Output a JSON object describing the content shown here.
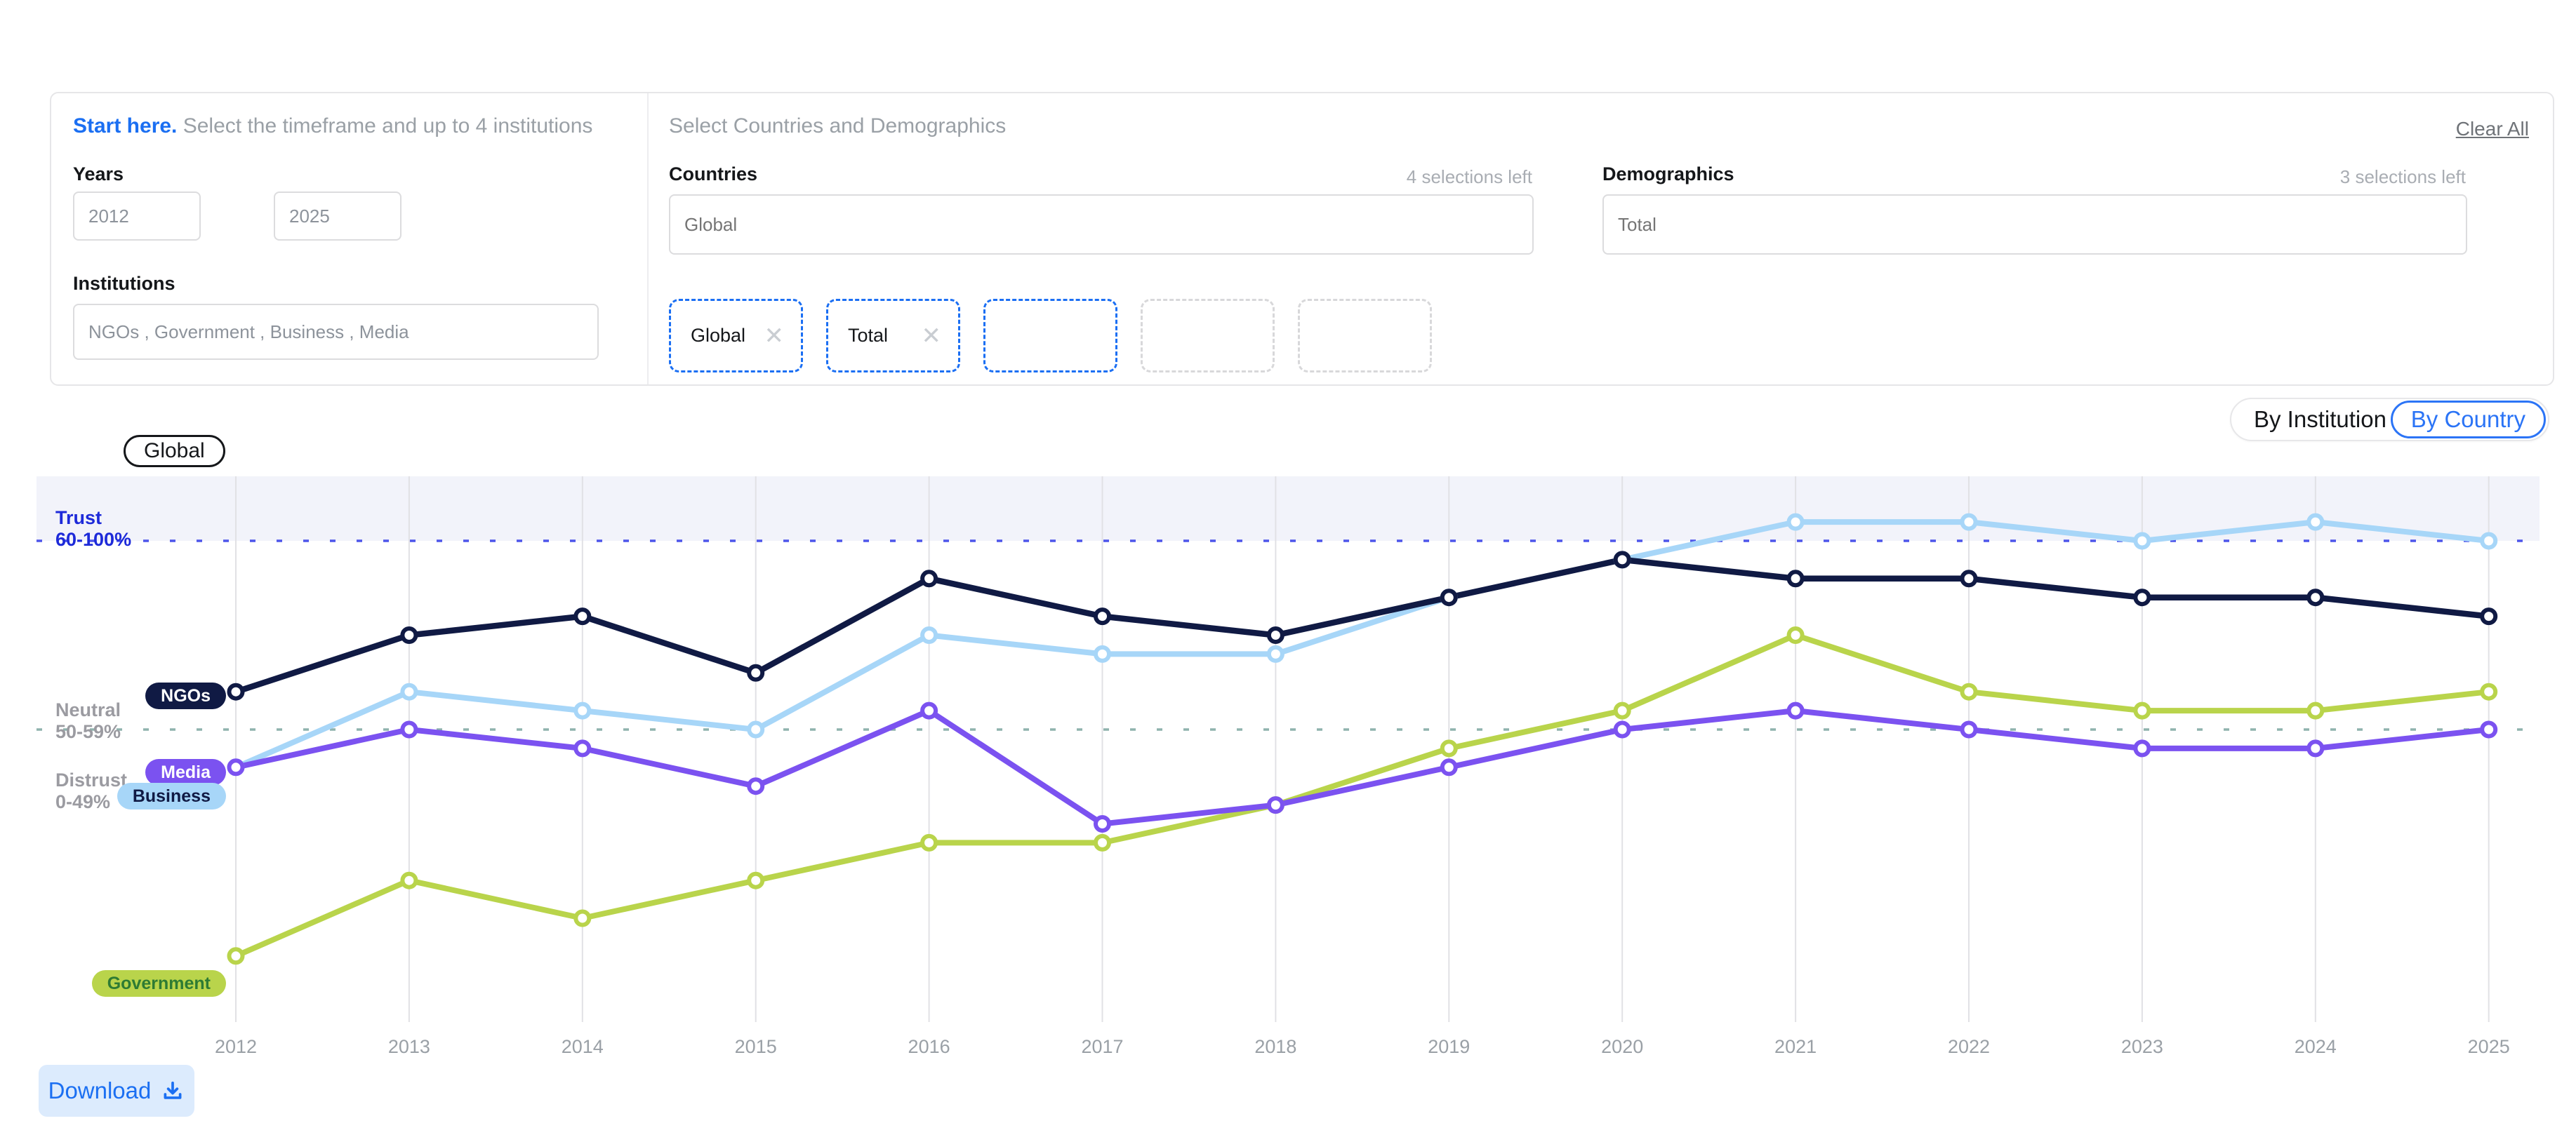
{
  "panel": {
    "start_here": "Start here.",
    "start_here_sub": "Select the timeframe and up to 4 institutions",
    "years_label": "Years",
    "year_from": "2012",
    "year_to": "2025",
    "institutions_label": "Institutions",
    "institutions_value": "NGOs , Government , Business , Media",
    "select_header": "Select Countries and Demographics",
    "countries_label": "Countries",
    "countries_selections_left": "4 selections left",
    "countries_placeholder": "Global",
    "demographics_label": "Demographics",
    "demographics_selections_left": "3 selections left",
    "demographics_placeholder": "Total",
    "clear_all": "Clear All",
    "close_icon": "✕",
    "chips": [
      {
        "label": "Global",
        "removable": true,
        "variant": "active"
      },
      {
        "label": "Total",
        "removable": true,
        "variant": "active"
      },
      {
        "label": "",
        "removable": false,
        "variant": "active-empty"
      },
      {
        "label": "",
        "removable": false,
        "variant": "empty"
      },
      {
        "label": "",
        "removable": false,
        "variant": "empty"
      }
    ]
  },
  "toolbar": {
    "by_institution": "By Institution",
    "by_country": "By Country",
    "selected": "By Country"
  },
  "chart": {
    "region_label": "Global",
    "download_label": "Download"
  },
  "colors": {
    "accent_blue": "#1b6ff2",
    "trust_band_bg": "#f2f3fa",
    "gridline": "#e1e1e5",
    "axis_text": "#9aa0a6"
  },
  "chart_data": {
    "type": "line",
    "title": "",
    "xlabel": "",
    "ylabel": "",
    "x": [
      2012,
      2013,
      2014,
      2015,
      2016,
      2017,
      2018,
      2019,
      2020,
      2021,
      2022,
      2023,
      2024,
      2025
    ],
    "ylim": [
      33,
      66
    ],
    "grid": "vertical-per-year",
    "legend_position": "inline-pills-left",
    "bands": [
      {
        "label": "Trust",
        "range": "60-100%",
        "line_value": 60,
        "label_color": "#1d2ad9",
        "line_color": "#4d55ea"
      },
      {
        "label": "Neutral",
        "range": "50-59%",
        "line_value": 50,
        "label_color": "#9b9ba1",
        "line_color": "#8fb3ad"
      },
      {
        "label": "Distrust",
        "range": "0-49%",
        "label_color": "#9b9ba1"
      }
    ],
    "series": [
      {
        "name": "Government",
        "color": "#b9d44b",
        "label_text_color": "#2e7b33",
        "values": [
          38,
          42,
          40,
          42,
          44,
          44,
          46,
          49,
          51,
          55,
          52,
          51,
          51,
          52
        ]
      },
      {
        "name": "Business",
        "color": "#a7d6f8",
        "label_text_color": "#101a44",
        "values": [
          48,
          52,
          51,
          50,
          55,
          54,
          54,
          57,
          59,
          61,
          61,
          60,
          61,
          60
        ]
      },
      {
        "name": "Media",
        "color": "#7b52f0",
        "label_text_color": "#ffffff",
        "values": [
          48,
          50,
          49,
          47,
          51,
          45,
          46,
          48,
          50,
          51,
          50,
          49,
          49,
          50
        ]
      },
      {
        "name": "NGOs",
        "color": "#101a44",
        "label_text_color": "#ffffff",
        "values": [
          52,
          55,
          56,
          53,
          58,
          56,
          55,
          57,
          59,
          58,
          58,
          57,
          57,
          56
        ]
      }
    ]
  }
}
